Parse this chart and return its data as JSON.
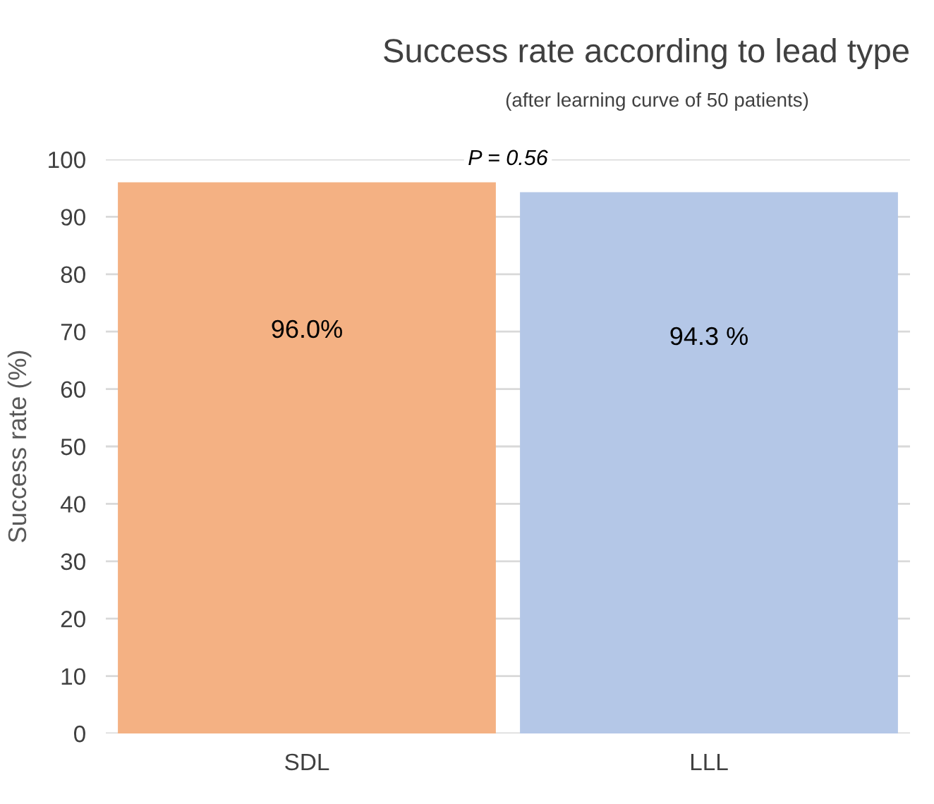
{
  "chart_data": {
    "type": "bar",
    "title": "Success rate according to lead type",
    "subtitle": "(after learning curve of 50 patients)",
    "ylabel": "Success rate (%)",
    "categories": [
      "SDL",
      "LLL"
    ],
    "values": [
      96.0,
      94.3
    ],
    "colors": [
      "#f4b183",
      "#b4c7e7"
    ],
    "value_labels": [
      "96.0%",
      "94.3 %"
    ],
    "annotations": [
      "P = 0.56"
    ],
    "ylim": [
      0,
      100
    ],
    "yticks": [
      0,
      10,
      20,
      30,
      40,
      50,
      60,
      70,
      80,
      90,
      100
    ],
    "grid": "y",
    "legend": false
  }
}
